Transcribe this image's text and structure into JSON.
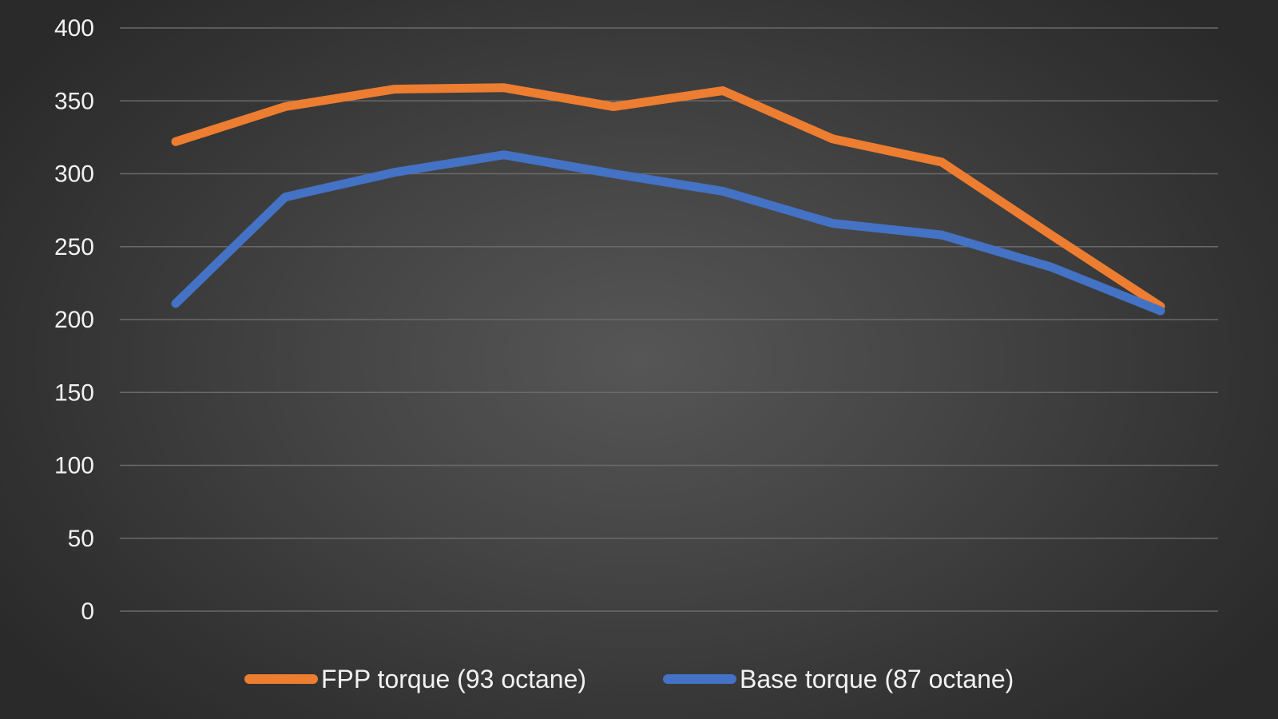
{
  "chart_data": {
    "type": "line",
    "title": "",
    "xlabel": "",
    "ylabel": "",
    "ylim": [
      0,
      400
    ],
    "yticks": [
      0,
      50,
      100,
      150,
      200,
      250,
      300,
      350,
      400
    ],
    "grid": true,
    "legend_position": "bottom",
    "x": [
      1,
      2,
      3,
      4,
      5,
      6,
      7,
      8,
      9,
      10
    ],
    "series": [
      {
        "name": "FPP torque (93 octane)",
        "color": "#ed7d31",
        "values": [
          322,
          346,
          358,
          359,
          346,
          357,
          324,
          308,
          258,
          209
        ]
      },
      {
        "name": "Base torque (87 octane)",
        "color": "#4472c4",
        "values": [
          211,
          284,
          301,
          313,
          300,
          288,
          266,
          258,
          236,
          206
        ]
      }
    ]
  }
}
